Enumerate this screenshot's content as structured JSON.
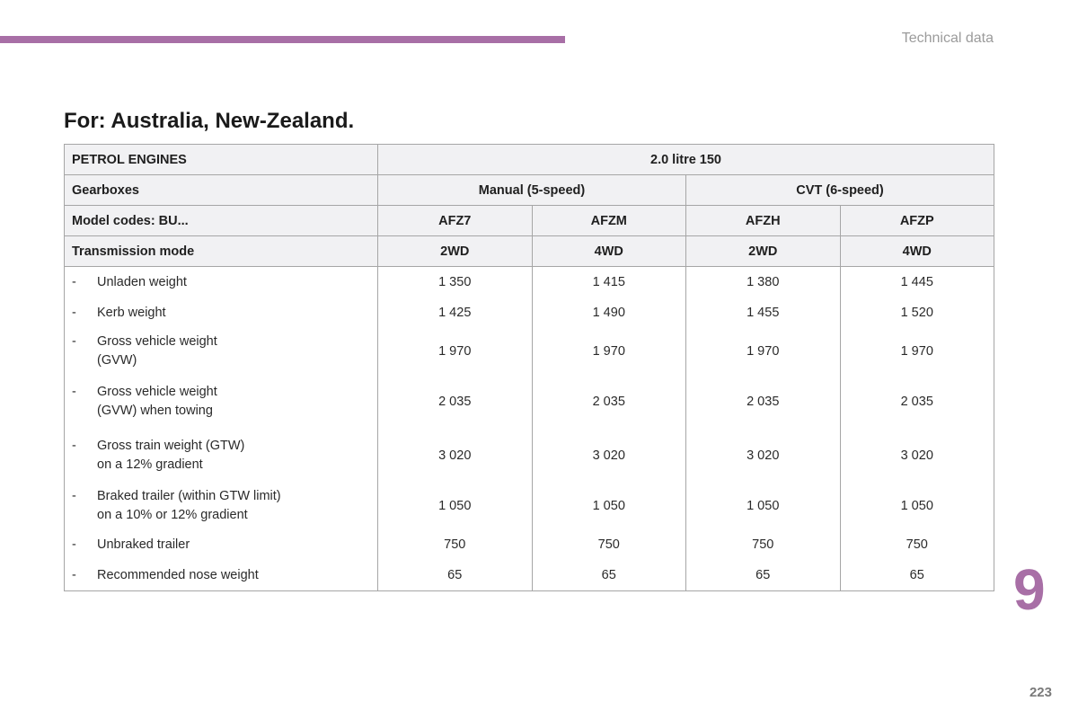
{
  "header": {
    "section_label": "Technical data"
  },
  "page_title": "For: Australia, New-Zealand.",
  "table": {
    "engine_label": "PETROL ENGINES",
    "engine_value": "2.0 litre 150",
    "gearbox_label": "Gearboxes",
    "gearboxes": [
      "Manual (5-speed)",
      "CVT (6-speed)"
    ],
    "model_codes_label": "Model codes: BU...",
    "model_codes": [
      "AFZ7",
      "AFZM",
      "AFZH",
      "AFZP"
    ],
    "transmission_label": "Transmission mode",
    "transmission_modes": [
      "2WD",
      "4WD",
      "2WD",
      "4WD"
    ],
    "rows": [
      {
        "dash": "-",
        "label": [
          "Unladen weight"
        ],
        "values": [
          "1 350",
          "1 415",
          "1 380",
          "1 445"
        ]
      },
      {
        "dash": "-",
        "label": [
          "Kerb weight"
        ],
        "values": [
          "1 425",
          "1 490",
          "1 455",
          "1 520"
        ]
      },
      {
        "dash": "-",
        "label": [
          "Gross vehicle weight",
          "(GVW)"
        ],
        "values": [
          "1 970",
          "1 970",
          "1 970",
          "1 970"
        ]
      },
      {
        "dash": "-",
        "label": [
          "Gross vehicle weight",
          "(GVW) when towing"
        ],
        "values": [
          "2 035",
          "2 035",
          "2 035",
          "2 035"
        ]
      },
      {
        "dash": "-",
        "label": [
          "Gross train weight (GTW)",
          "on a 12% gradient"
        ],
        "values": [
          "3 020",
          "3 020",
          "3 020",
          "3 020"
        ]
      },
      {
        "dash": "-",
        "label": [
          "Braked trailer (within GTW limit)",
          "on a 10% or 12% gradient"
        ],
        "values": [
          "1 050",
          "1 050",
          "1 050",
          "1 050"
        ]
      },
      {
        "dash": "-",
        "label": [
          "Unbraked trailer"
        ],
        "values": [
          "750",
          "750",
          "750",
          "750"
        ]
      },
      {
        "dash": "-",
        "label": [
          "Recommended nose weight"
        ],
        "values": [
          "65",
          "65",
          "65",
          "65"
        ]
      }
    ]
  },
  "chapter_number": "9",
  "page_number": "223",
  "colors": {
    "accent": "#a86fa6",
    "header_fill": "#f1f1f3",
    "border": "#a6a6a6",
    "muted_text": "#9b9b9b"
  }
}
